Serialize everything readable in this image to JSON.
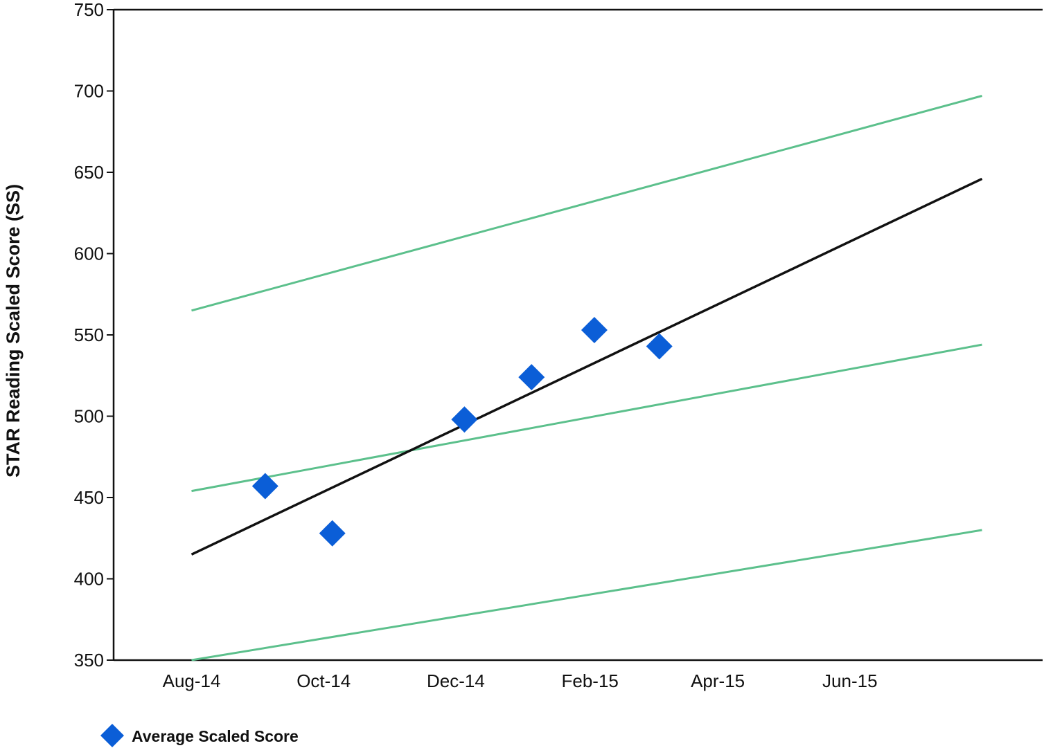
{
  "chart_data": {
    "type": "scatter",
    "title": "",
    "ylabel": "STAR Reading Scaled Score (SS)",
    "xlabel": "",
    "ylim": [
      350,
      750
    ],
    "yticks": [
      350,
      400,
      450,
      500,
      550,
      600,
      650,
      700,
      750
    ],
    "xlim": [
      "2014-07-10",
      "2015-09-12"
    ],
    "xticks": [
      {
        "date": "2014-08-15",
        "label": "Aug-14"
      },
      {
        "date": "2014-10-15",
        "label": "Oct-14"
      },
      {
        "date": "2014-12-15",
        "label": "Dec-14"
      },
      {
        "date": "2015-02-15",
        "label": "Feb-15"
      },
      {
        "date": "2015-04-15",
        "label": "Apr-15"
      },
      {
        "date": "2015-06-15",
        "label": "Jun-15"
      }
    ],
    "grid": false,
    "legend_position": "bottom-left",
    "series": [
      {
        "name": "Average Scaled Score",
        "type": "scatter",
        "marker": "diamond",
        "color": "#0b5ed7",
        "points": [
          {
            "x": "2014-09-18",
            "y": 457
          },
          {
            "x": "2014-10-19",
            "y": 428
          },
          {
            "x": "2014-12-19",
            "y": 498
          },
          {
            "x": "2015-01-19",
            "y": 524
          },
          {
            "x": "2015-02-17",
            "y": 553
          },
          {
            "x": "2015-03-19",
            "y": 543
          }
        ]
      },
      {
        "type": "line",
        "color": "#111111",
        "points": [
          {
            "x": "2014-08-15",
            "y": 415
          },
          {
            "x": "2015-08-15",
            "y": 646
          }
        ]
      },
      {
        "type": "line",
        "color": "#5cc08c",
        "points": [
          {
            "x": "2014-08-15",
            "y": 565
          },
          {
            "x": "2015-08-15",
            "y": 697
          }
        ]
      },
      {
        "type": "line",
        "color": "#5cc08c",
        "points": [
          {
            "x": "2014-08-15",
            "y": 454
          },
          {
            "x": "2015-08-15",
            "y": 544
          }
        ]
      },
      {
        "type": "line",
        "color": "#5cc08c",
        "points": [
          {
            "x": "2014-08-15",
            "y": 350
          },
          {
            "x": "2015-08-15",
            "y": 430
          }
        ]
      }
    ],
    "legend": [
      {
        "label": "Average Scaled Score",
        "marker": "diamond",
        "color": "#0b5ed7"
      }
    ]
  }
}
